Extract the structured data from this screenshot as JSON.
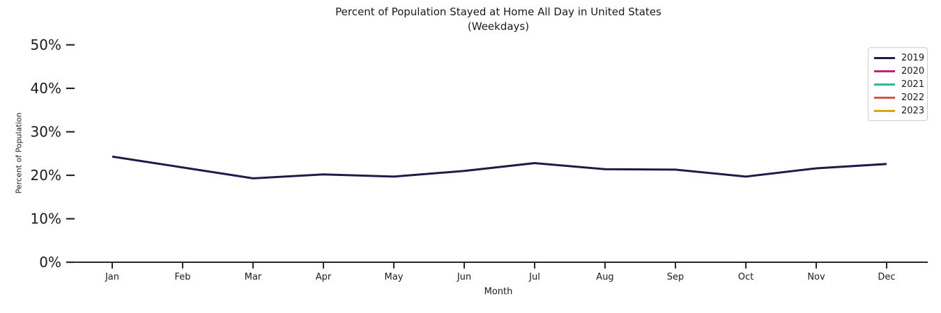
{
  "chart_data": {
    "type": "line",
    "title": "Percent of Population Stayed at Home All Day in United States",
    "subtitle": "(Weekdays)",
    "xlabel": "Month",
    "ylabel": "Percent of Population",
    "categories": [
      "Jan",
      "Feb",
      "Mar",
      "Apr",
      "May",
      "Jun",
      "Jul",
      "Aug",
      "Sep",
      "Oct",
      "Nov",
      "Dec"
    ],
    "ytick_labels": [
      "0%",
      "10%",
      "20%",
      "30%",
      "40%",
      "50%"
    ],
    "ytick_values": [
      0,
      10,
      20,
      30,
      40,
      50
    ],
    "ylim": [
      0,
      50
    ],
    "grid": false,
    "legend_position": "upper right",
    "axis_color": "#262626",
    "text_color": "#1a1a1a",
    "series": [
      {
        "name": "2019",
        "color": "#1e1b47",
        "values": [
          24.3,
          21.8,
          19.3,
          20.2,
          19.7,
          21.0,
          22.8,
          21.4,
          21.3,
          19.7,
          21.6,
          22.6
        ]
      },
      {
        "name": "2020",
        "color": "#bf2181",
        "values": []
      },
      {
        "name": "2021",
        "color": "#29b795",
        "values": []
      },
      {
        "name": "2022",
        "color": "#cd564e",
        "values": []
      },
      {
        "name": "2023",
        "color": "#d9a60d",
        "values": []
      }
    ]
  }
}
